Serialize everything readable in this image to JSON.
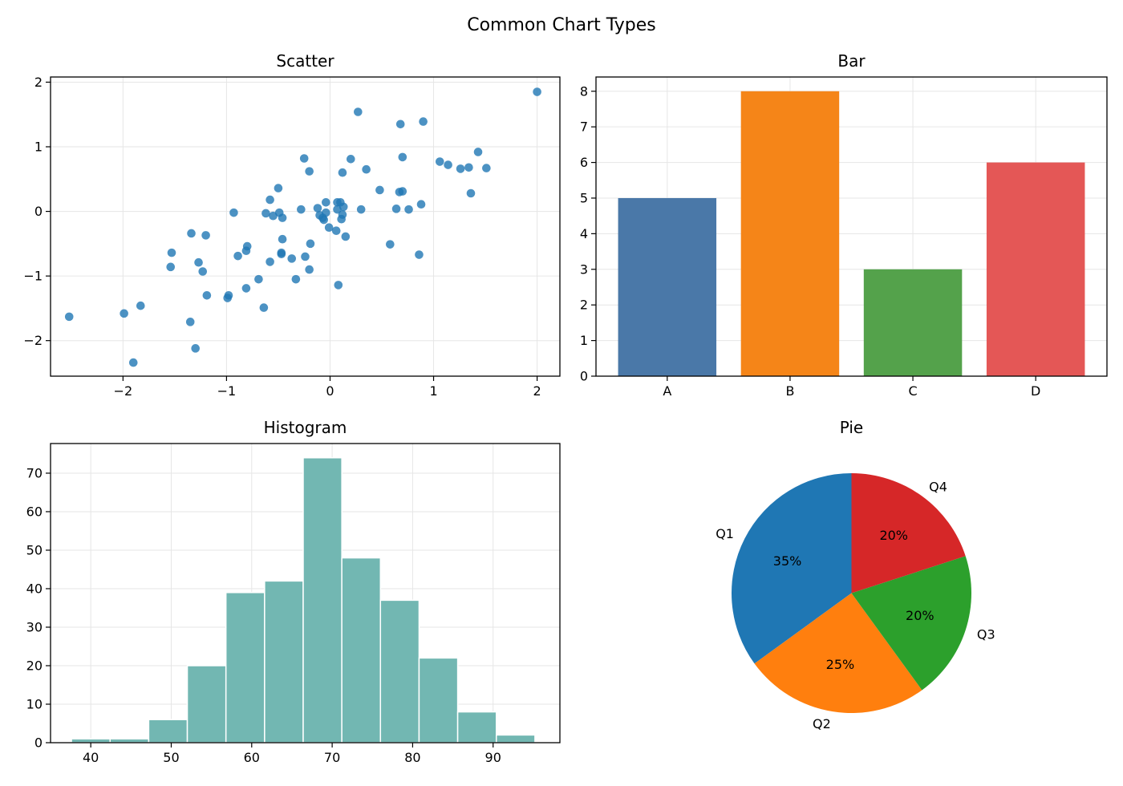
{
  "figure_title": "Common Chart Types",
  "colors": {
    "scatter": "#1f77b4",
    "bar": [
      "#4a78a8",
      "#f58518",
      "#54a24b",
      "#e45756"
    ],
    "hist": "#72b7b2",
    "pie": [
      "#1f77b4",
      "#ff7f0e",
      "#2ca02c",
      "#d62728"
    ],
    "grid": "#e6e6e6"
  },
  "chart_data": [
    {
      "type": "scatter",
      "title": "Scatter",
      "xlabel": "",
      "ylabel": "",
      "xlim": [
        -2.7,
        2.22
      ],
      "ylim": [
        -2.55,
        2.08
      ],
      "xticks": [
        -2,
        -1,
        0,
        1,
        2
      ],
      "yticks": [
        -2,
        -1,
        0,
        1,
        2
      ],
      "grid": true,
      "points": [
        [
          2.0,
          1.85
        ],
        [
          -2.52,
          -1.63
        ],
        [
          -1.99,
          -1.58
        ],
        [
          -1.83,
          -1.46
        ],
        [
          -1.9,
          -2.34
        ],
        [
          -1.35,
          -1.71
        ],
        [
          -1.3,
          -2.12
        ],
        [
          -1.54,
          -0.86
        ],
        [
          -1.53,
          -0.64
        ],
        [
          -1.34,
          -0.34
        ],
        [
          -1.2,
          -0.37
        ],
        [
          -1.27,
          -0.79
        ],
        [
          -1.23,
          -0.93
        ],
        [
          -1.19,
          -1.3
        ],
        [
          -0.99,
          -1.34
        ],
        [
          -0.98,
          -1.3
        ],
        [
          -0.93,
          -0.02
        ],
        [
          -0.89,
          -0.69
        ],
        [
          -0.8,
          -0.54
        ],
        [
          -0.81,
          -0.61
        ],
        [
          -0.81,
          -1.19
        ],
        [
          -0.69,
          -1.05
        ],
        [
          -0.64,
          -1.49
        ],
        [
          -0.62,
          -0.03
        ],
        [
          -0.58,
          0.18
        ],
        [
          -0.58,
          -0.78
        ],
        [
          -0.55,
          -0.07
        ],
        [
          -0.5,
          0.36
        ],
        [
          -0.49,
          -0.02
        ],
        [
          -0.47,
          -0.64
        ],
        [
          -0.47,
          -0.66
        ],
        [
          -0.46,
          -0.43
        ],
        [
          -0.46,
          -0.1
        ],
        [
          -0.37,
          -0.73
        ],
        [
          -0.33,
          -1.05
        ],
        [
          -0.28,
          0.03
        ],
        [
          -0.25,
          0.82
        ],
        [
          -0.24,
          -0.7
        ],
        [
          -0.2,
          0.62
        ],
        [
          -0.2,
          -0.9
        ],
        [
          -0.19,
          -0.5
        ],
        [
          -0.12,
          0.05
        ],
        [
          -0.1,
          -0.06
        ],
        [
          -0.07,
          -0.1
        ],
        [
          -0.06,
          -0.13
        ],
        [
          -0.04,
          0.14
        ],
        [
          -0.04,
          -0.02
        ],
        [
          -0.01,
          -0.25
        ],
        [
          0.06,
          -0.3
        ],
        [
          0.07,
          0.14
        ],
        [
          0.07,
          0.03
        ],
        [
          0.08,
          -1.14
        ],
        [
          0.1,
          0.14
        ],
        [
          0.11,
          -0.12
        ],
        [
          0.12,
          0.6
        ],
        [
          0.12,
          -0.05
        ],
        [
          0.13,
          0.07
        ],
        [
          0.15,
          -0.39
        ],
        [
          0.2,
          0.81
        ],
        [
          0.27,
          1.54
        ],
        [
          0.3,
          0.03
        ],
        [
          0.35,
          0.65
        ],
        [
          0.48,
          0.33
        ],
        [
          0.58,
          -0.51
        ],
        [
          0.64,
          0.04
        ],
        [
          0.67,
          0.3
        ],
        [
          0.68,
          1.35
        ],
        [
          0.7,
          0.84
        ],
        [
          0.7,
          0.31
        ],
        [
          0.76,
          0.03
        ],
        [
          0.86,
          -0.67
        ],
        [
          0.88,
          0.11
        ],
        [
          0.9,
          1.39
        ],
        [
          1.06,
          0.77
        ],
        [
          1.14,
          0.72
        ],
        [
          1.26,
          0.66
        ],
        [
          1.34,
          0.68
        ],
        [
          1.36,
          0.28
        ],
        [
          1.43,
          0.92
        ],
        [
          1.51,
          0.67
        ]
      ]
    },
    {
      "type": "bar",
      "title": "Bar",
      "xlabel": "",
      "ylabel": "",
      "categories": [
        "A",
        "B",
        "C",
        "D"
      ],
      "values": [
        5,
        8,
        3,
        6
      ],
      "ylim": [
        0,
        8.4
      ],
      "yticks": [
        0,
        1,
        2,
        3,
        4,
        5,
        6,
        7,
        8
      ],
      "grid": true
    },
    {
      "type": "bar",
      "subtype": "histogram",
      "title": "Histogram",
      "xlabel": "",
      "ylabel": "",
      "bin_start": 37.6,
      "bin_width": 4.8,
      "counts": [
        1,
        1,
        6,
        20,
        39,
        42,
        74,
        48,
        37,
        22,
        8,
        2
      ],
      "xlim": [
        35.0,
        98.3
      ],
      "ylim": [
        0,
        77.7
      ],
      "xticks": [
        40,
        50,
        60,
        70,
        80,
        90
      ],
      "yticks": [
        0,
        10,
        20,
        30,
        40,
        50,
        60,
        70
      ],
      "grid": true
    },
    {
      "type": "pie",
      "title": "Pie",
      "labels": [
        "Q1",
        "Q2",
        "Q3",
        "Q4"
      ],
      "values": [
        35,
        25,
        20,
        20
      ],
      "pct_labels": [
        "35%",
        "25%",
        "20%",
        "20%"
      ],
      "start_angle_deg": 90,
      "direction": "counterclockwise"
    }
  ]
}
